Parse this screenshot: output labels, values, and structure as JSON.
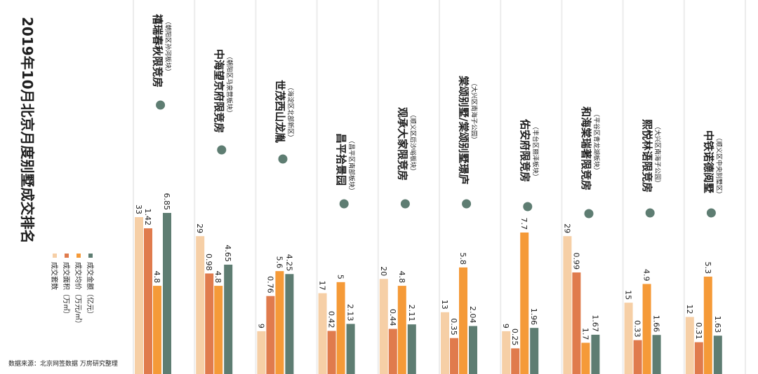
{
  "chart_data": {
    "type": "bar",
    "title": "2019年10月北京月度别墅成交排名",
    "source": "数据来源：北京网签数据 万房研究整理",
    "colors": {
      "count": "#f6cfa6",
      "area": "#e07b4d",
      "price": "#f59a38",
      "amount": "#5e7d72",
      "divider": "#ececec",
      "dot": "#5e7d72"
    },
    "series": [
      {
        "key": "count",
        "name": "成交套数",
        "values": [
          33,
          29,
          9,
          17,
          20,
          13,
          9,
          29,
          15,
          12
        ],
        "labels": [
          "33",
          "29",
          "9",
          "17",
          "20",
          "13",
          "9",
          "29",
          "15",
          "12"
        ]
      },
      {
        "key": "area",
        "name": "成交面积（万㎡）",
        "values": [
          1.42,
          0.98,
          0.76,
          0.42,
          0.44,
          0.35,
          0.25,
          0.99,
          0.33,
          0.31
        ],
        "labels": [
          "1.42",
          "0.98",
          "0.76",
          "0.42",
          "0.44",
          "0.35",
          "0.25",
          "0.99",
          "0.33",
          "0.31"
        ]
      },
      {
        "key": "price",
        "name": "成交均价（万元/㎡）",
        "values": [
          4.8,
          4.8,
          5.6,
          5,
          4.8,
          5.8,
          7.7,
          1.7,
          4.9,
          5.3
        ],
        "labels": [
          "4.8",
          "4.8",
          "5.6",
          "5",
          "4.8",
          "5.8",
          "7.7",
          "1.7",
          "4.9",
          "5.3"
        ]
      },
      {
        "key": "amount",
        "name": "成交金额（亿元）",
        "values": [
          6.85,
          4.65,
          4.25,
          2.13,
          2.11,
          2.04,
          1.96,
          1.67,
          1.66,
          1.63
        ],
        "labels": [
          "6.85",
          "4.65",
          "4.25",
          "2.13",
          "2.11",
          "2.04",
          "1.96",
          "1.67",
          "1.66",
          "1.63"
        ]
      }
    ],
    "categories": [
      {
        "name": "禧瑞春秋限竞房",
        "district": "（朝阳区孙河板块）"
      },
      {
        "name": "中海望京府限竞房",
        "district": "（朝阳区马泉营板块）"
      },
      {
        "name": "世茂西山龙胤",
        "district": "（海淀区北部新区）"
      },
      {
        "name": "昌平拾景园",
        "district": "（昌平区南部板块）"
      },
      {
        "name": "观承大家限竞房",
        "district": "（顺义区后沙峪板块）"
      },
      {
        "name": "棠颂别墅/棠颂别墅璟庐",
        "district": "（大兴区南海子公园）"
      },
      {
        "name": "佑安府限竞房",
        "district": "（丰台区丽泽板块）"
      },
      {
        "name": "和海棠瑞著限竞房",
        "district": "（平谷区青龙湖板块）"
      },
      {
        "name": "熙悦林语限竞房",
        "district": "（大兴区南海子公园）"
      },
      {
        "name": "中铁诺德阅墅",
        "district": "（顺义区中央别墅区）"
      }
    ]
  }
}
